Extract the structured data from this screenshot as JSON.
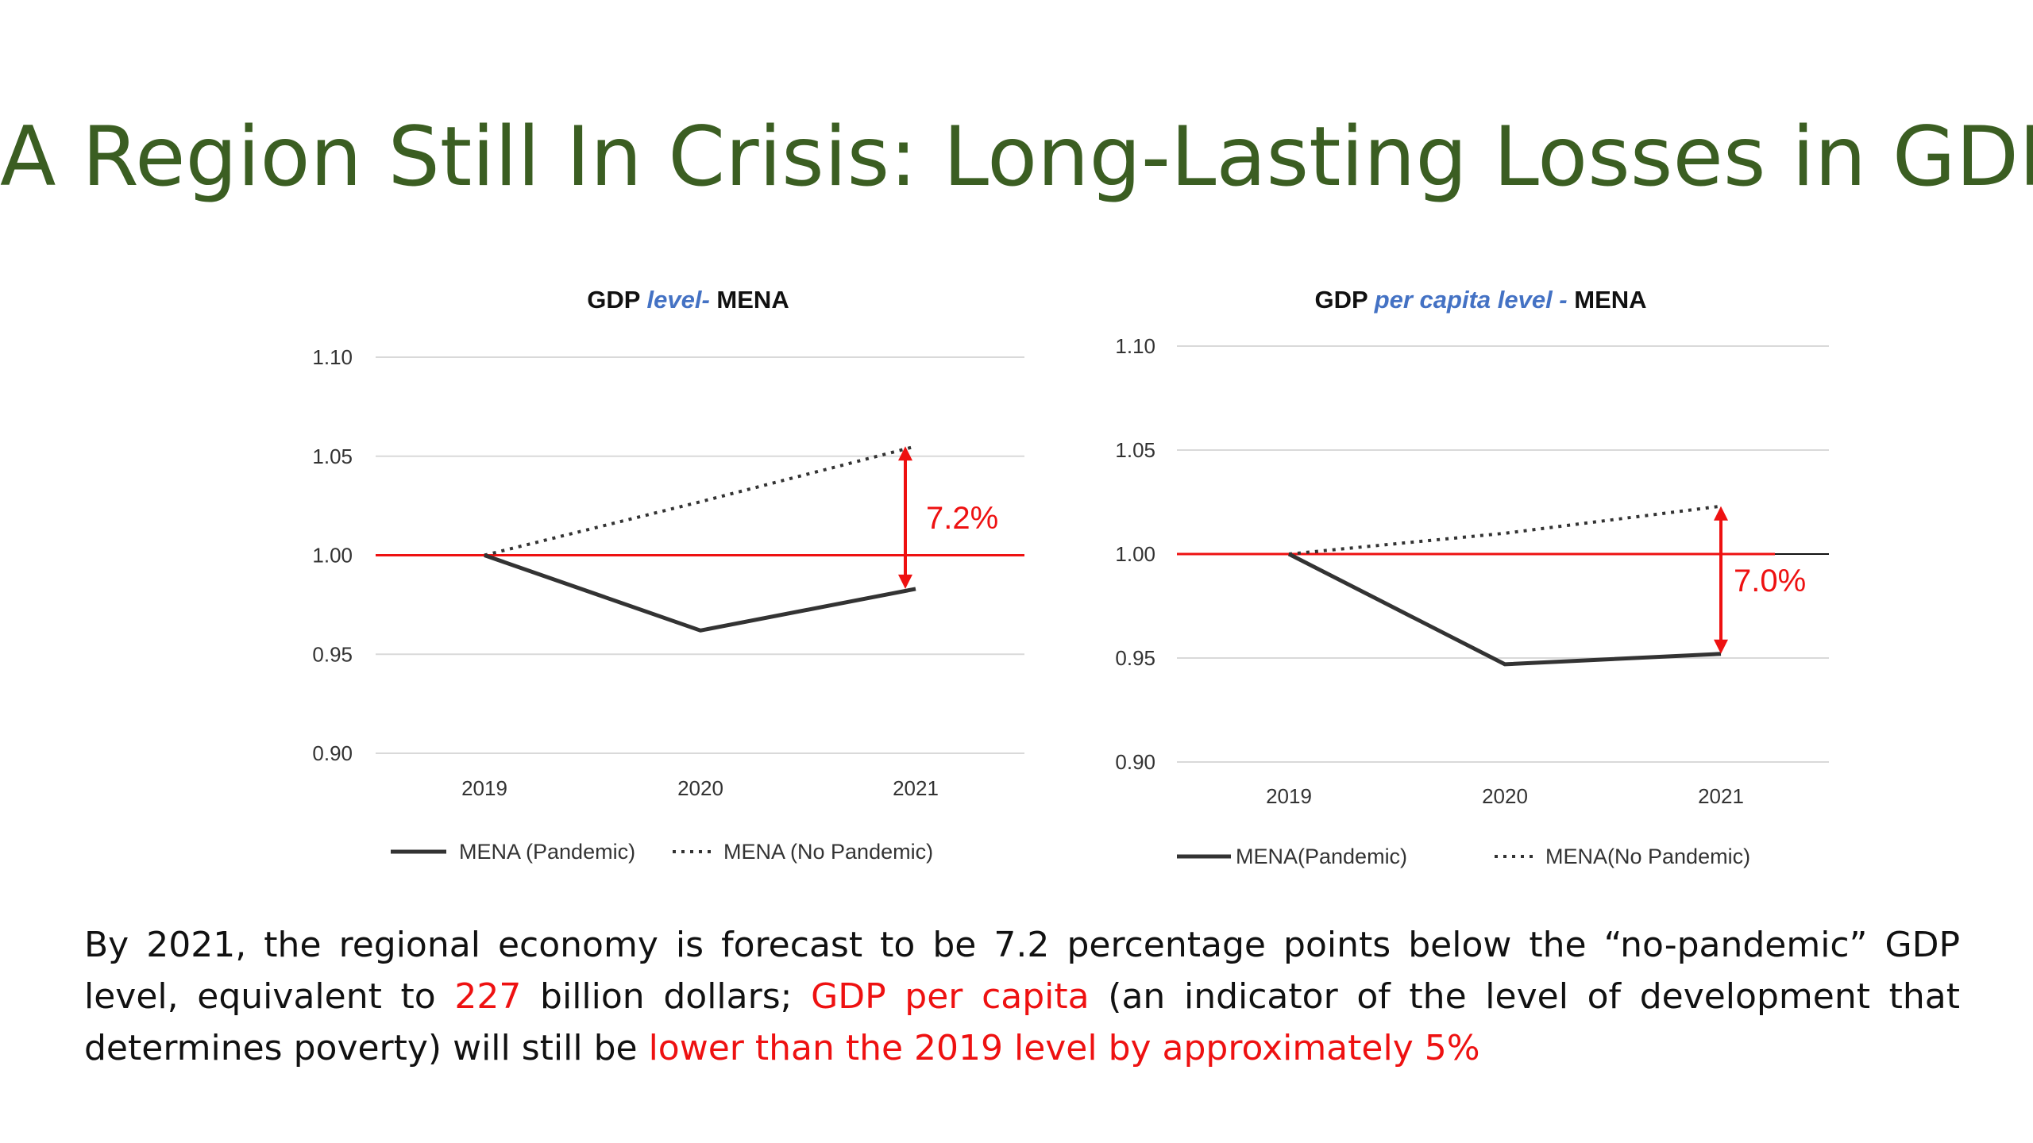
{
  "slide": {
    "title": "A Region Still In Crisis: Long-Lasting Losses in GDP"
  },
  "colors": {
    "title": "#3b5e22",
    "accent_red": "#ee1111",
    "title_blue": "#4472c4",
    "series": "#333333"
  },
  "chart_data": [
    {
      "type": "line",
      "title_parts": [
        "GDP ",
        "level-",
        " MENA"
      ],
      "categories": [
        "2019",
        "2020",
        "2021"
      ],
      "ylim": [
        0.9,
        1.1
      ],
      "yticks": [
        "0.90",
        "0.95",
        "1.00",
        "1.05",
        "1.10"
      ],
      "series": [
        {
          "name": "MENA (Pandemic)",
          "style": "solid",
          "values": [
            1.0,
            0.962,
            0.983
          ]
        },
        {
          "name": "MENA (No Pandemic)",
          "style": "dotted",
          "values": [
            1.0,
            1.027,
            1.055
          ]
        }
      ],
      "reference_line": 1.0,
      "gap_annotation": {
        "label": "7.2%",
        "from": 0.983,
        "to": 1.055
      },
      "grid": true,
      "legend": "bottom"
    },
    {
      "type": "line",
      "title_parts": [
        "GDP ",
        "per capita level -",
        " MENA"
      ],
      "categories": [
        "2019",
        "2020",
        "2021"
      ],
      "ylim": [
        0.9,
        1.1
      ],
      "yticks": [
        "0.90",
        "0.95",
        "1.00",
        "1.05",
        "1.10"
      ],
      "series": [
        {
          "name": "MENA(Pandemic)",
          "style": "solid",
          "values": [
            1.0,
            0.947,
            0.952
          ]
        },
        {
          "name": "MENA(No Pandemic)",
          "style": "dotted",
          "values": [
            1.0,
            1.01,
            1.023
          ]
        }
      ],
      "reference_line": 1.0,
      "gap_annotation": {
        "label": "7.0%",
        "from": 0.952,
        "to": 1.023
      },
      "grid": true,
      "legend": "bottom"
    }
  ],
  "body": {
    "t1": "By 2021, the regional economy is forecast to be 7.2 percentage points below the “no-pandemic” GDP level, equivalent to ",
    "r1": "227",
    "t2": " billion dollars; ",
    "r2": "GDP per capita",
    "t3": " (an indicator of the level of development that determines poverty) will still be ",
    "r3": "lower than the 2019 level by approximately 5%"
  }
}
